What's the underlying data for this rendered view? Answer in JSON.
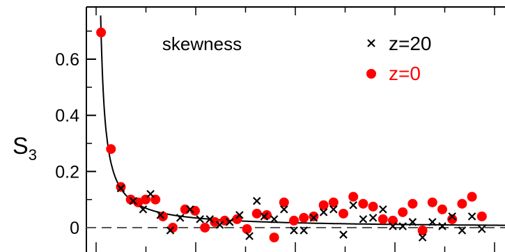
{
  "chart_data": {
    "type": "scatter",
    "title": "skewness",
    "xlabel": "",
    "ylabel": "S",
    "ylabel_subscript": "3",
    "ylim": [
      -0.04,
      0.78
    ],
    "xlim": [
      0,
      100
    ],
    "yticks": [
      0,
      0.2,
      0.4,
      0.6
    ],
    "ytick_labels": [
      "0",
      "0.2",
      "0.4",
      "0.6"
    ],
    "legend_position": "top-right",
    "reference_line": {
      "y": 0,
      "style": "dashed"
    },
    "fit_curve": {
      "formula": "0.695 / x",
      "color": "#000000"
    },
    "series": [
      {
        "name": "z=20",
        "marker": "x",
        "color": "#000000",
        "points": [
          [
            5,
            0.14
          ],
          [
            7.5,
            0.095
          ],
          [
            9.5,
            0.065
          ],
          [
            11,
            0.12
          ],
          [
            13,
            0.045
          ],
          [
            15,
            -0.01
          ],
          [
            17,
            0.035
          ],
          [
            19,
            0.065
          ],
          [
            21,
            0.03
          ],
          [
            23,
            0.03
          ],
          [
            25,
            0.01
          ],
          [
            27,
            0.02
          ],
          [
            29,
            0.045
          ],
          [
            31,
            -0.03
          ],
          [
            32.5,
            0.095
          ],
          [
            34,
            0.04
          ],
          [
            36,
            0.03
          ],
          [
            38,
            0.065
          ],
          [
            40,
            -0.01
          ],
          [
            42,
            -0.01
          ],
          [
            44,
            0.035
          ],
          [
            46,
            0.055
          ],
          [
            48,
            0.065
          ],
          [
            50,
            -0.025
          ],
          [
            52,
            0.08
          ],
          [
            54,
            0.03
          ],
          [
            56,
            0.035
          ],
          [
            58,
            0.065
          ],
          [
            60,
            0.005
          ],
          [
            62,
            0.005
          ],
          [
            64,
            0.02
          ],
          [
            66,
            -0.035
          ],
          [
            68,
            0.02
          ],
          [
            70,
            0.005
          ],
          [
            72,
            0.04
          ],
          [
            74,
            -0.01
          ],
          [
            76,
            0.04
          ],
          [
            78,
            -0.005
          ]
        ]
      },
      {
        "name": "z=0",
        "marker": "circle",
        "color": "#ff0000",
        "points": [
          [
            1,
            0.695
          ],
          [
            3,
            0.28
          ],
          [
            5,
            0.145
          ],
          [
            7,
            0.1
          ],
          [
            8.5,
            0.09
          ],
          [
            10,
            0.1
          ],
          [
            12,
            0.1
          ],
          [
            13.5,
            0.04
          ],
          [
            15.5,
            0.0
          ],
          [
            18,
            0.065
          ],
          [
            20,
            0.06
          ],
          [
            22,
            0.0
          ],
          [
            24,
            0.02
          ],
          [
            26,
            0.025
          ],
          [
            28.5,
            0.03
          ],
          [
            30.5,
            -0.005
          ],
          [
            32.5,
            0.05
          ],
          [
            34.5,
            0.045
          ],
          [
            36,
            -0.035
          ],
          [
            38,
            0.09
          ],
          [
            40,
            0.025
          ],
          [
            42,
            0.035
          ],
          [
            44,
            0.04
          ],
          [
            46,
            0.08
          ],
          [
            48,
            0.09
          ],
          [
            50,
            0.05
          ],
          [
            52,
            0.11
          ],
          [
            54,
            0.085
          ],
          [
            56,
            0.075
          ],
          [
            58,
            0.03
          ],
          [
            60,
            0.025
          ],
          [
            62,
            0.055
          ],
          [
            64,
            0.085
          ],
          [
            66,
            -0.01
          ],
          [
            68,
            0.09
          ],
          [
            70,
            0.065
          ],
          [
            72,
            0.03
          ],
          [
            74,
            0.085
          ],
          [
            76,
            0.11
          ],
          [
            78,
            0.04
          ]
        ]
      }
    ]
  }
}
